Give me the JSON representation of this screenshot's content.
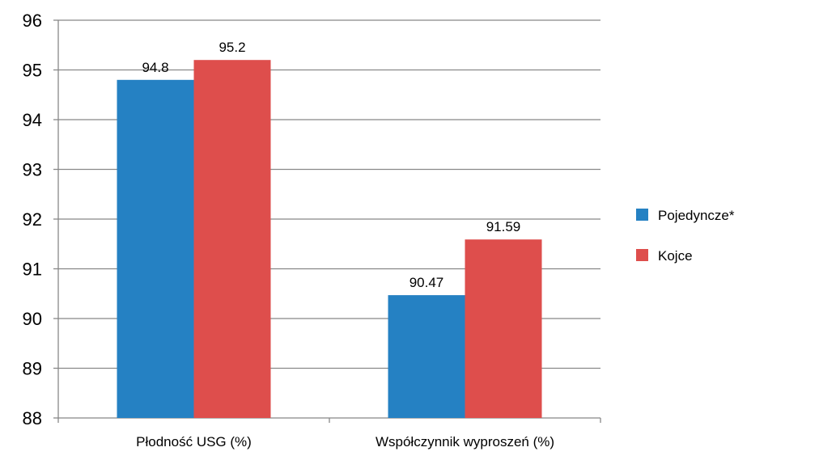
{
  "chart_data": {
    "type": "bar",
    "categories": [
      "Płodność USG (%)",
      "Współczynnik wyproszeń (%)"
    ],
    "series": [
      {
        "name": "Pojedyncze*",
        "values": [
          94.8,
          90.47
        ],
        "color": "#2581C3",
        "labels": [
          "94.8",
          "90.47"
        ]
      },
      {
        "name": "Kojce",
        "values": [
          95.2,
          91.59
        ],
        "color": "#DE4E4C",
        "labels": [
          "95.2",
          "91.59"
        ]
      }
    ],
    "ylim": [
      88,
      96
    ],
    "yticks": [
      "88",
      "89",
      "90",
      "91",
      "92",
      "93",
      "94",
      "95",
      "96"
    ],
    "grid": true,
    "legend": "right"
  }
}
